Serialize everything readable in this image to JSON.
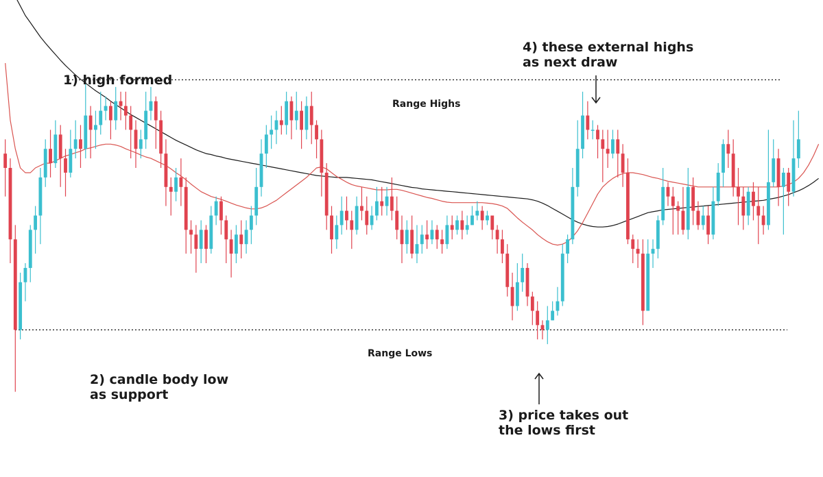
{
  "chart_data": {
    "type": "candlestick",
    "colors": {
      "up": "#3bbfcf",
      "down": "#e0434f",
      "ma_fast": "#d9534f",
      "ma_slow": "#1a1a1a",
      "level_line": "#222222"
    },
    "ylim": [
      0,
      1000
    ],
    "levels": [
      {
        "name": "Range Highs",
        "value": 785
      },
      {
        "name": "Range Lows",
        "value": 260
      }
    ],
    "annotations": [
      {
        "id": "high-formed",
        "lines": [
          "1) high formed"
        ]
      },
      {
        "id": "body-low-support",
        "lines": [
          "2) candle body low",
          "as support"
        ]
      },
      {
        "id": "takes-out-lows",
        "lines": [
          "3) price takes out",
          "the lows first"
        ]
      },
      {
        "id": "external-highs",
        "lines": [
          "4) these external highs",
          "as next draw"
        ]
      }
    ],
    "candles": [
      [
        630,
        600,
        660,
        540
      ],
      [
        600,
        450,
        620,
        400
      ],
      [
        450,
        260,
        480,
        130
      ],
      [
        260,
        360,
        380,
        240
      ],
      [
        360,
        390,
        400,
        320
      ],
      [
        390,
        470,
        480,
        360
      ],
      [
        470,
        500,
        520,
        420
      ],
      [
        500,
        580,
        600,
        440
      ],
      [
        580,
        640,
        660,
        560
      ],
      [
        640,
        610,
        680,
        580
      ],
      [
        610,
        670,
        700,
        600
      ],
      [
        670,
        620,
        690,
        560
      ],
      [
        620,
        590,
        640,
        540
      ],
      [
        590,
        640,
        680,
        580
      ],
      [
        640,
        660,
        700,
        620
      ],
      [
        660,
        640,
        690,
        600
      ],
      [
        640,
        710,
        785,
        620
      ],
      [
        710,
        680,
        730,
        620
      ],
      [
        680,
        690,
        720,
        640
      ],
      [
        690,
        720,
        760,
        670
      ],
      [
        720,
        730,
        750,
        700
      ],
      [
        730,
        700,
        740,
        660
      ],
      [
        700,
        740,
        770,
        680
      ],
      [
        740,
        730,
        760,
        700
      ],
      [
        730,
        710,
        760,
        680
      ],
      [
        710,
        680,
        730,
        620
      ],
      [
        680,
        640,
        700,
        600
      ],
      [
        640,
        660,
        680,
        620
      ],
      [
        660,
        720,
        760,
        640
      ],
      [
        720,
        740,
        770,
        700
      ],
      [
        740,
        700,
        750,
        640
      ],
      [
        700,
        630,
        720,
        600
      ],
      [
        630,
        560,
        660,
        520
      ],
      [
        560,
        550,
        580,
        500
      ],
      [
        550,
        580,
        600,
        530
      ],
      [
        580,
        560,
        620,
        520
      ],
      [
        560,
        470,
        580,
        420
      ],
      [
        470,
        460,
        490,
        420
      ],
      [
        460,
        430,
        480,
        380
      ],
      [
        430,
        470,
        490,
        400
      ],
      [
        470,
        430,
        480,
        400
      ],
      [
        430,
        500,
        520,
        420
      ],
      [
        500,
        530,
        540,
        480
      ],
      [
        530,
        490,
        540,
        460
      ],
      [
        490,
        450,
        500,
        400
      ],
      [
        450,
        420,
        470,
        370
      ],
      [
        420,
        460,
        480,
        400
      ],
      [
        460,
        440,
        490,
        410
      ],
      [
        440,
        470,
        490,
        420
      ],
      [
        470,
        500,
        520,
        440
      ],
      [
        500,
        560,
        600,
        480
      ],
      [
        560,
        630,
        660,
        540
      ],
      [
        630,
        670,
        690,
        600
      ],
      [
        670,
        680,
        710,
        640
      ],
      [
        680,
        700,
        720,
        650
      ],
      [
        700,
        690,
        730,
        670
      ],
      [
        690,
        740,
        760,
        670
      ],
      [
        740,
        700,
        750,
        660
      ],
      [
        700,
        720,
        760,
        680
      ],
      [
        720,
        680,
        740,
        640
      ],
      [
        680,
        730,
        750,
        660
      ],
      [
        730,
        690,
        760,
        650
      ],
      [
        690,
        660,
        700,
        620
      ],
      [
        660,
        590,
        680,
        540
      ],
      [
        590,
        500,
        610,
        470
      ],
      [
        500,
        450,
        520,
        420
      ],
      [
        450,
        480,
        500,
        430
      ],
      [
        480,
        510,
        540,
        460
      ],
      [
        510,
        490,
        540,
        470
      ],
      [
        490,
        470,
        510,
        430
      ],
      [
        470,
        520,
        540,
        460
      ],
      [
        520,
        510,
        560,
        490
      ],
      [
        510,
        480,
        540,
        460
      ],
      [
        480,
        500,
        520,
        470
      ],
      [
        500,
        530,
        560,
        490
      ],
      [
        530,
        520,
        560,
        500
      ],
      [
        520,
        540,
        560,
        500
      ],
      [
        540,
        510,
        580,
        490
      ],
      [
        510,
        470,
        540,
        450
      ],
      [
        470,
        440,
        500,
        400
      ],
      [
        440,
        470,
        490,
        420
      ],
      [
        470,
        420,
        500,
        410
      ],
      [
        420,
        440,
        480,
        400
      ],
      [
        440,
        460,
        480,
        420
      ],
      [
        460,
        450,
        490,
        430
      ],
      [
        450,
        470,
        490,
        440
      ],
      [
        470,
        450,
        480,
        430
      ],
      [
        450,
        440,
        470,
        420
      ],
      [
        440,
        480,
        500,
        430
      ],
      [
        480,
        470,
        500,
        450
      ],
      [
        470,
        490,
        500,
        460
      ],
      [
        490,
        470,
        510,
        450
      ],
      [
        470,
        480,
        500,
        460
      ],
      [
        480,
        500,
        520,
        480
      ],
      [
        500,
        510,
        530,
        490
      ],
      [
        510,
        490,
        520,
        470
      ],
      [
        490,
        500,
        510,
        480
      ],
      [
        500,
        470,
        500,
        450
      ],
      [
        470,
        450,
        480,
        420
      ],
      [
        450,
        420,
        470,
        400
      ],
      [
        420,
        350,
        440,
        330
      ],
      [
        350,
        310,
        380,
        280
      ],
      [
        310,
        360,
        400,
        300
      ],
      [
        360,
        390,
        420,
        340
      ],
      [
        390,
        330,
        400,
        310
      ],
      [
        330,
        300,
        340,
        270
      ],
      [
        300,
        270,
        320,
        240
      ],
      [
        270,
        260,
        280,
        240
      ],
      [
        260,
        280,
        310,
        230
      ],
      [
        280,
        300,
        320,
        280
      ],
      [
        300,
        320,
        350,
        290
      ],
      [
        320,
        420,
        440,
        310
      ],
      [
        420,
        450,
        460,
        400
      ],
      [
        450,
        560,
        600,
        440
      ],
      [
        560,
        640,
        700,
        540
      ],
      [
        640,
        710,
        760,
        620
      ],
      [
        710,
        680,
        740,
        660
      ],
      [
        680,
        680,
        700,
        660
      ],
      [
        680,
        660,
        690,
        620
      ],
      [
        660,
        640,
        680,
        570
      ],
      [
        640,
        630,
        680,
        600
      ],
      [
        630,
        660,
        680,
        620
      ],
      [
        660,
        630,
        680,
        580
      ],
      [
        630,
        590,
        650,
        560
      ],
      [
        590,
        450,
        620,
        440
      ],
      [
        450,
        430,
        460,
        400
      ],
      [
        430,
        420,
        450,
        390
      ],
      [
        420,
        300,
        450,
        270
      ],
      [
        300,
        420,
        450,
        300
      ],
      [
        420,
        430,
        450,
        390
      ],
      [
        430,
        490,
        500,
        410
      ],
      [
        490,
        560,
        600,
        480
      ],
      [
        560,
        540,
        570,
        520
      ],
      [
        540,
        520,
        560,
        460
      ],
      [
        520,
        510,
        530,
        460
      ],
      [
        510,
        470,
        560,
        460
      ],
      [
        470,
        560,
        600,
        450
      ],
      [
        560,
        510,
        580,
        480
      ],
      [
        510,
        480,
        530,
        470
      ],
      [
        480,
        500,
        520,
        470
      ],
      [
        500,
        460,
        520,
        440
      ],
      [
        460,
        530,
        560,
        450
      ],
      [
        530,
        590,
        610,
        520
      ],
      [
        590,
        650,
        660,
        560
      ],
      [
        650,
        630,
        680,
        600
      ],
      [
        630,
        560,
        660,
        540
      ],
      [
        560,
        540,
        600,
        480
      ],
      [
        540,
        500,
        560,
        470
      ],
      [
        500,
        550,
        560,
        480
      ],
      [
        550,
        520,
        570,
        490
      ],
      [
        520,
        500,
        560,
        440
      ],
      [
        500,
        480,
        520,
        460
      ],
      [
        480,
        570,
        680,
        470
      ],
      [
        570,
        620,
        660,
        560
      ],
      [
        620,
        560,
        640,
        520
      ],
      [
        560,
        590,
        600,
        460
      ],
      [
        590,
        550,
        600,
        520
      ],
      [
        550,
        620,
        700,
        540
      ],
      [
        620,
        660,
        720,
        600
      ]
    ],
    "ma_fast": [
      820,
      700,
      640,
      600,
      590,
      590,
      600,
      605,
      610,
      610,
      615,
      620,
      625,
      628,
      632,
      635,
      640,
      642,
      645,
      648,
      650,
      650,
      648,
      645,
      640,
      636,
      632,
      627,
      623,
      620,
      615,
      610,
      605,
      598,
      590,
      583,
      575,
      566,
      558,
      550,
      545,
      540,
      537,
      534,
      530,
      526,
      522,
      519,
      516,
      514,
      514,
      516,
      520,
      526,
      532,
      540,
      548,
      556,
      564,
      572,
      580,
      590,
      600,
      602,
      598,
      590,
      582,
      576,
      570,
      565,
      562,
      560,
      558,
      556,
      554,
      554,
      554,
      555,
      555,
      553,
      550,
      547,
      544,
      541,
      538,
      536,
      533,
      530,
      528,
      527,
      527,
      527,
      527,
      527,
      527,
      527,
      526,
      525,
      523,
      520,
      515,
      505,
      495,
      486,
      478,
      470,
      460,
      452,
      445,
      440,
      438,
      440,
      445,
      455,
      468,
      485,
      505,
      525,
      545,
      560,
      570,
      578,
      584,
      588,
      590,
      590,
      588,
      586,
      583,
      580,
      578,
      575,
      572,
      570,
      568,
      566,
      564,
      562,
      560,
      560,
      560,
      560,
      560,
      560,
      560,
      560,
      560,
      560,
      560,
      560,
      560,
      560,
      560,
      560,
      560,
      562,
      565,
      570,
      578,
      590,
      606,
      626,
      650
    ],
    "ma_slow": [
      1000,
      980,
      960,
      940,
      920,
      905,
      890,
      875,
      862,
      850,
      838,
      826,
      815,
      805,
      795,
      786,
      778,
      770,
      762,
      755,
      748,
      740,
      733,
      726,
      719,
      712,
      706,
      700,
      694,
      688,
      682,
      676,
      670,
      664,
      658,
      653,
      648,
      643,
      638,
      634,
      630,
      628,
      625,
      623,
      620,
      618,
      616,
      614,
      612,
      610,
      608,
      606,
      604,
      602,
      600,
      598,
      596,
      594,
      592,
      590,
      588,
      586,
      584,
      583,
      582,
      581,
      580,
      580,
      580,
      579,
      578,
      577,
      576,
      575,
      573,
      571,
      569,
      567,
      565,
      563,
      561,
      559,
      558,
      556,
      555,
      554,
      553,
      552,
      551,
      550,
      549,
      548,
      547,
      546,
      545,
      544,
      543,
      542,
      541,
      540,
      539,
      538,
      537,
      536,
      535,
      533,
      530,
      526,
      521,
      515,
      509,
      503,
      497,
      491,
      486,
      482,
      479,
      477,
      476,
      476,
      477,
      479,
      482,
      486,
      490,
      494,
      498,
      502,
      506,
      508,
      510,
      512,
      513,
      514,
      515,
      516,
      517,
      518,
      519,
      520,
      521,
      522,
      523,
      524,
      525,
      526,
      527,
      528,
      529,
      530,
      531,
      532,
      534,
      536,
      538,
      541,
      544,
      548,
      552,
      557,
      563,
      570,
      578
    ]
  }
}
